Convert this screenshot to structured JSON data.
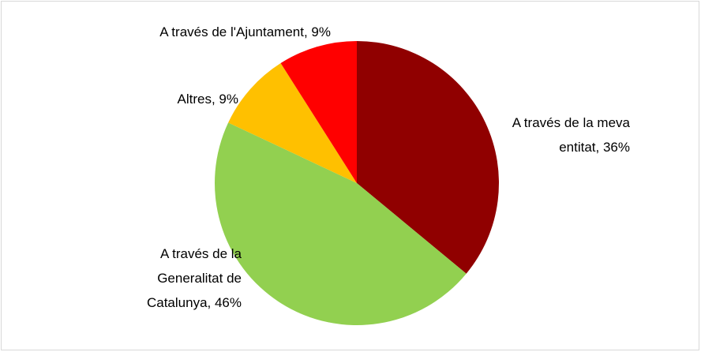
{
  "chart_data": {
    "type": "pie",
    "categories": [
      "A través de la meva entitat",
      "A través de la Generalitat de Catalunya",
      "Altres",
      "A través de l'Ajuntament"
    ],
    "values": [
      36,
      46,
      9,
      9
    ],
    "value_labels": [
      "A través de la meva entitat, 36%",
      "A través de la Generalitat de Catalunya, 46%",
      "Altres, 9%",
      "A través de l'Ajuntament, 9%"
    ],
    "colors": [
      "#900000",
      "#92d050",
      "#ffc000",
      "#ff0000"
    ]
  }
}
